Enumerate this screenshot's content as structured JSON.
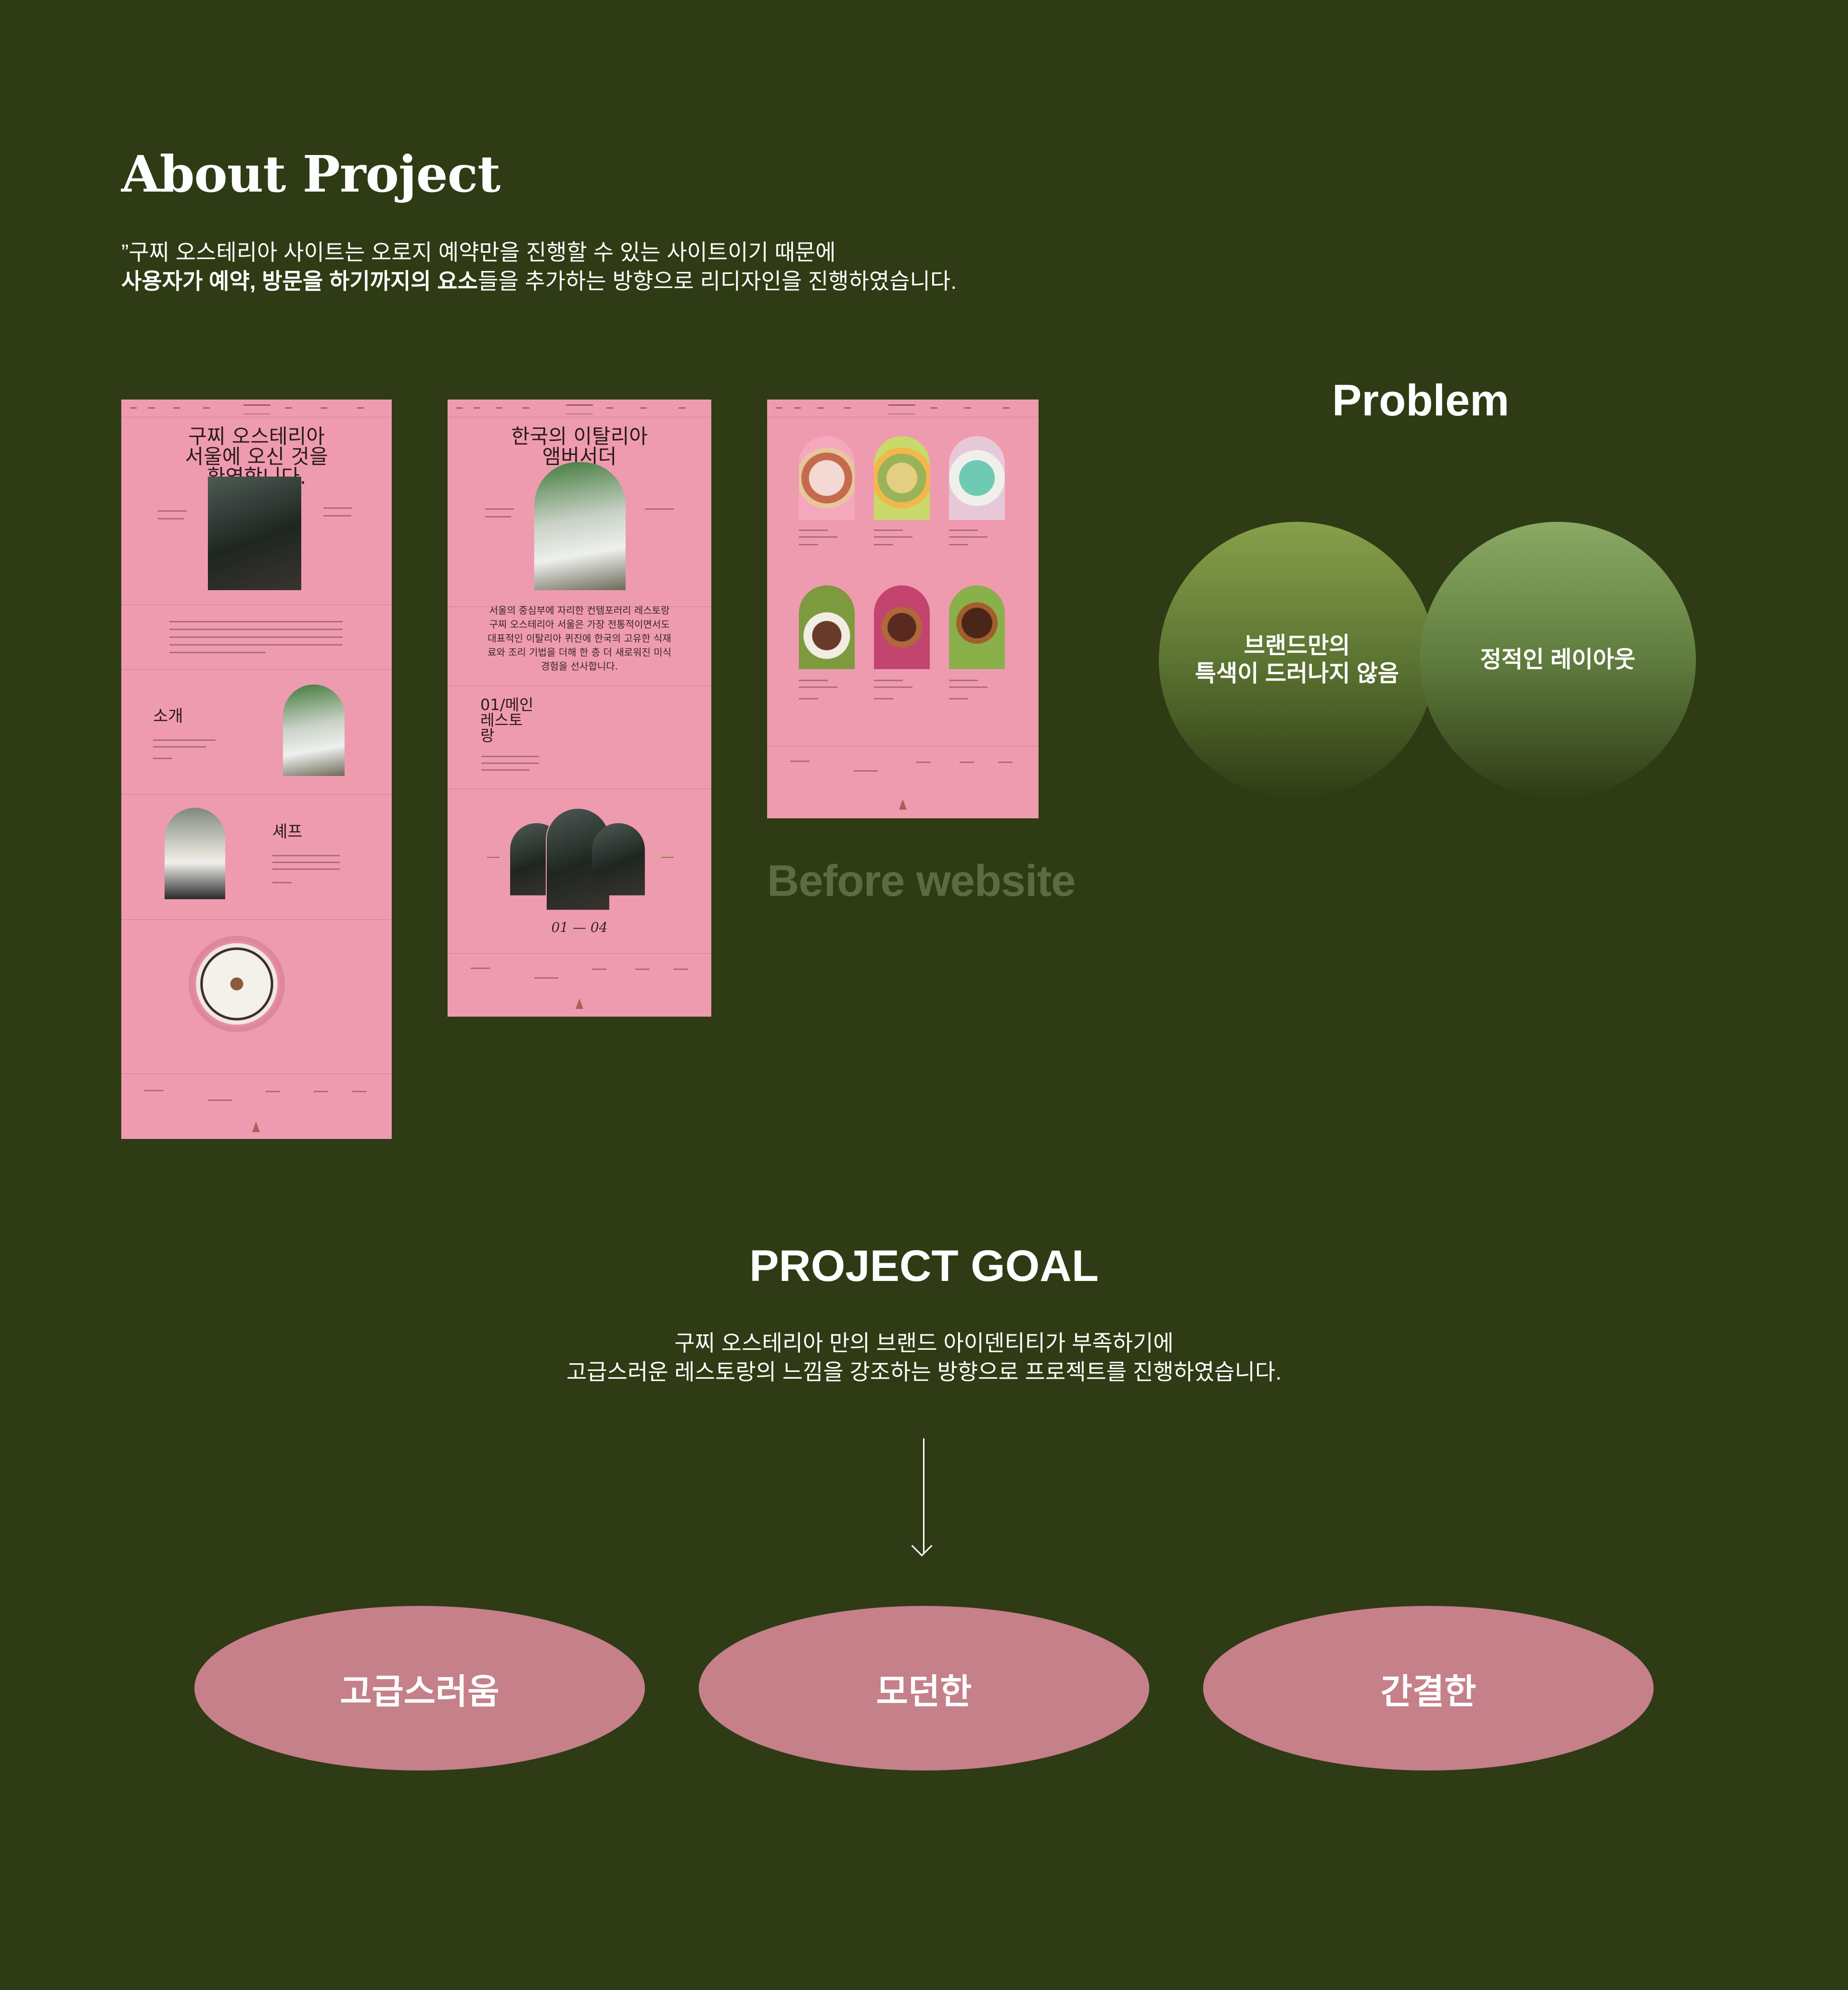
{
  "about": {
    "title": "About Project",
    "desc_line1": "”구찌 오스테리아 사이트는 오로지 예약만을 진행할 수 있는 사이트이기 때문에",
    "desc_line2_bold": "사용자가 예약, 방문을 하기까지의 요소",
    "desc_line2_rest": "들을 추가하는 방향으로 리디자인을 진행하였습니다."
  },
  "mockups": {
    "m1": {
      "hero": [
        "구찌 오스테리아",
        "서울에 오신 것을",
        "환영합니다."
      ],
      "section_intro": "소개",
      "section_chef": "셰프"
    },
    "m2": {
      "hero": [
        "한국의 이탈리아",
        "앰버서더"
      ],
      "para": [
        "서울의 중심부에 자리한 컨템포러리 레스토랑",
        "구찌 오스테리아 서울은 가장 전통적이면서도",
        "대표적인 이탈리아 퀴진에 한국의 고유한 식재",
        "료와 조리 기법을 더해 한 층 더 새로워진 미식",
        "경험을 선사합니다."
      ],
      "menu_heading": [
        "01/메인",
        "레스토",
        "랑"
      ],
      "pager": "01 — 04"
    }
  },
  "before_label": "Before website",
  "problem": {
    "title": "Problem",
    "items": [
      [
        "브랜드만의",
        "특색이 드러나지 않음"
      ],
      [
        "정적인 레이아웃"
      ]
    ]
  },
  "goal": {
    "title": "PROJECT GOAL",
    "desc_line1": "구찌 오스테리아 만의 브랜드 아이덴티티가 부족하기에",
    "desc_line2": "고급스러운 레스토랑의 느낌을 강조하는 방향으로 프로젝트를 진행하였습니다.",
    "keywords": [
      "고급스러움",
      "모던한",
      "간결한"
    ]
  },
  "colors": {
    "background": "#2e3b14",
    "mockup_pink": "#ee9bb0",
    "keyword_pink": "#c5808a",
    "muted_green_text": "#5b6b42"
  }
}
